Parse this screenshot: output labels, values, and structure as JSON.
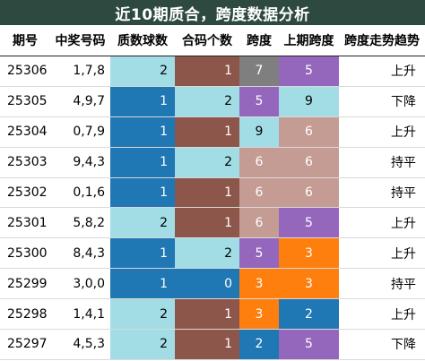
{
  "title": "近10期质合，跨度数据分析",
  "headers": [
    "期号",
    "中奖号码",
    "质数球数",
    "合码个数",
    "跨度",
    "上期跨度",
    "跨度走势趋势"
  ],
  "colors": {
    "title_bg": "#2e4a40",
    "light_blue": "#a2dde6",
    "blue": "#1f77b4",
    "brown": "#8c564b",
    "gray": "#7f7f7f",
    "purple": "#9467bd",
    "pink_brown": "#c49c94",
    "orange": "#ff7f0e"
  },
  "rows": [
    {
      "period": "25306",
      "numbers": "1,7,8",
      "prime": "2",
      "composite": "1",
      "span": "7",
      "prev_span": "5",
      "trend": "上升",
      "prime_color": "light_blue",
      "composite_color": "brown",
      "span_color": "gray",
      "prev_color": "purple"
    },
    {
      "period": "25305",
      "numbers": "4,9,7",
      "prime": "1",
      "composite": "2",
      "span": "5",
      "prev_span": "9",
      "trend": "下降",
      "prime_color": "blue",
      "composite_color": "light_blue",
      "span_color": "purple",
      "prev_color": "light_blue"
    },
    {
      "period": "25304",
      "numbers": "0,7,9",
      "prime": "1",
      "composite": "1",
      "span": "9",
      "prev_span": "6",
      "trend": "上升",
      "prime_color": "blue",
      "composite_color": "brown",
      "span_color": "light_blue",
      "prev_color": "pink_brown"
    },
    {
      "period": "25303",
      "numbers": "9,4,3",
      "prime": "1",
      "composite": "2",
      "span": "6",
      "prev_span": "6",
      "trend": "持平",
      "prime_color": "blue",
      "composite_color": "light_blue",
      "span_color": "pink_brown",
      "prev_color": "pink_brown"
    },
    {
      "period": "25302",
      "numbers": "0,1,6",
      "prime": "1",
      "composite": "1",
      "span": "6",
      "prev_span": "6",
      "trend": "持平",
      "prime_color": "blue",
      "composite_color": "brown",
      "span_color": "pink_brown",
      "prev_color": "pink_brown"
    },
    {
      "period": "25301",
      "numbers": "5,8,2",
      "prime": "2",
      "composite": "1",
      "span": "6",
      "prev_span": "5",
      "trend": "上升",
      "prime_color": "light_blue",
      "composite_color": "brown",
      "span_color": "pink_brown",
      "prev_color": "purple"
    },
    {
      "period": "25300",
      "numbers": "8,4,3",
      "prime": "1",
      "composite": "2",
      "span": "5",
      "prev_span": "3",
      "trend": "上升",
      "prime_color": "blue",
      "composite_color": "light_blue",
      "span_color": "purple",
      "prev_color": "orange"
    },
    {
      "period": "25299",
      "numbers": "3,0,0",
      "prime": "1",
      "composite": "0",
      "span": "3",
      "prev_span": "3",
      "trend": "持平",
      "prime_color": "blue",
      "composite_color": "blue",
      "span_color": "orange",
      "prev_color": "orange"
    },
    {
      "period": "25298",
      "numbers": "1,4,1",
      "prime": "2",
      "composite": "1",
      "span": "3",
      "prev_span": "2",
      "trend": "上升",
      "prime_color": "light_blue",
      "composite_color": "brown",
      "span_color": "orange",
      "prev_color": "blue"
    },
    {
      "period": "25297",
      "numbers": "4,5,3",
      "prime": "2",
      "composite": "1",
      "span": "2",
      "prev_span": "5",
      "trend": "下降",
      "prime_color": "light_blue",
      "composite_color": "brown",
      "span_color": "blue",
      "prev_color": "purple"
    }
  ]
}
